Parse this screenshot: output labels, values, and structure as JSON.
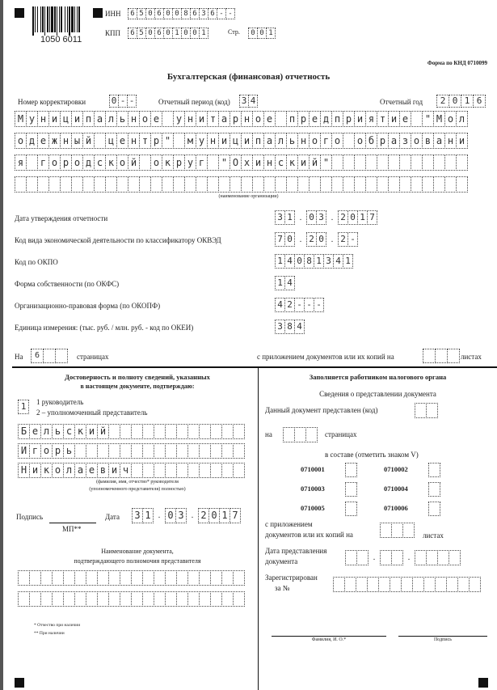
{
  "header": {
    "barcode_number": "1050 6011",
    "inn_label": "ИНН",
    "inn": "6506008636--",
    "kpp_label": "КПП",
    "kpp": "650601001",
    "page_label": "Стр.",
    "page": "001",
    "form_code": "Форма по КНД 0710099",
    "title": "Бухгалтерская (финансовая) отчетность"
  },
  "period": {
    "correction_label": "Номер корректировки",
    "correction": "0--",
    "period_label": "Отчетный период (код)",
    "period": "34",
    "year_label": "Отчетный год",
    "year": "2016"
  },
  "organization": {
    "rows": [
      "Муниципальное унитарное предприятие \"Мол",
      "одежный центр\" муниципального образовани",
      "я городской округ \"Охинский\"",
      ""
    ],
    "caption": "(наименование организации)"
  },
  "fields": [
    {
      "label": "Дата утверждения отчетности",
      "groups": [
        "31",
        "03",
        "2017"
      ]
    },
    {
      "label": "Код вида экономической деятельности по классификатору ОКВЭД",
      "groups": [
        "70",
        "20",
        "2-"
      ]
    },
    {
      "label": "Код по ОКПО",
      "groups": [
        "14081341"
      ]
    },
    {
      "label": "Форма собственности (по ОКФС)",
      "groups": [
        "14"
      ]
    },
    {
      "label": "Организационно-правовая форма (по ОКОПФ)",
      "groups": [
        "42---"
      ]
    },
    {
      "label": "Единица измерения: (тыс. руб. / млн. руб. - код по ОКЕИ)",
      "groups": [
        "384"
      ]
    }
  ],
  "pages": {
    "on_label": "На",
    "count": "6  ",
    "pages_label": "страницах",
    "attach_label": "с приложением документов или их копий на",
    "attach": "   ",
    "sheets_label": "листах"
  },
  "left": {
    "title1": "Достоверность и полноту сведений, указанных",
    "title2": "в настоящем документе, подтверждаю:",
    "signer_code": "1",
    "opt1": "1   руководитель",
    "opt2": "2 – уполномоченный представитель",
    "names": [
      "Бельский",
      "Игорь",
      "Николаевич"
    ],
    "name_caption1": "(фамилия, имя, отчество* руководителя",
    "name_caption2": "(уполномоченного представителя) полностью)",
    "sign_label": "Подпись",
    "date_label": "Дата",
    "date": [
      "31",
      "03",
      "2017"
    ],
    "stamp": "МП**",
    "doc_title1": "Наименование документа,",
    "doc_title2": "подтверждающего полномочия представителя",
    "footnote1": "* Отчество при наличии",
    "footnote2": "** При наличии"
  },
  "right": {
    "title": "Заполняется работником налогового органа",
    "subtitle": "Сведения о представлении документа",
    "submitted_label": "Данный документ представлен (код)",
    "on_label": "на",
    "pages_label": "страницах",
    "composition_label": "в составе (отметить знаком V)",
    "codes": [
      "0710001",
      "0710002",
      "0710003",
      "0710004",
      "0710005",
      "0710006"
    ],
    "attach_label1": "с приложением",
    "attach_label2": "документов или их копий на",
    "sheets_label": "листах",
    "date_label1": "Дата представления",
    "date_label2": "документа",
    "reg_label1": "Зарегистрирован",
    "reg_label2": "за №",
    "fio_caption": "Фамилия, И. О.*",
    "sign_caption": "Подпись"
  }
}
